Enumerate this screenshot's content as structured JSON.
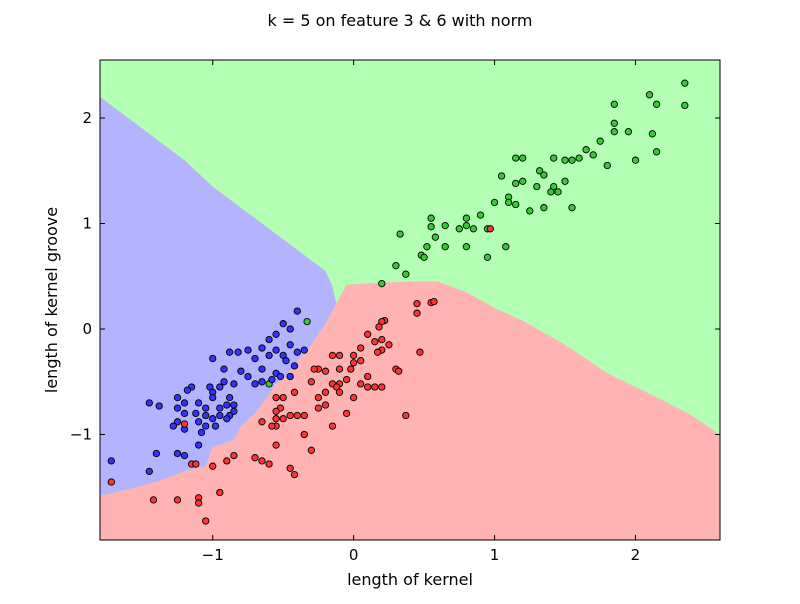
{
  "chart_data": {
    "type": "scatter",
    "title": "k = 5 on feature 3 & 6 with norm",
    "xlabel": "length of kernel",
    "ylabel": "length of kernel groove",
    "xlim": [
      -1.8,
      2.6
    ],
    "ylim": [
      -2.0,
      2.55
    ],
    "grid": false,
    "legend": "none",
    "xticks": [
      {
        "value": -1,
        "label": "−1"
      },
      {
        "value": 0,
        "label": "0"
      },
      {
        "value": 1,
        "label": "1"
      },
      {
        "value": 2,
        "label": "2"
      }
    ],
    "yticks": [
      {
        "value": -1,
        "label": "−1"
      },
      {
        "value": 0,
        "label": "0"
      },
      {
        "value": 1,
        "label": "1"
      },
      {
        "value": 2,
        "label": "2"
      }
    ],
    "regions": [
      {
        "class": "green",
        "color": "#b3ffb3",
        "points": [
          [
            -1.8,
            2.2
          ],
          [
            -1.7,
            2.1
          ],
          [
            -1.5,
            1.9
          ],
          [
            -1.2,
            1.6
          ],
          [
            -1.0,
            1.35
          ],
          [
            -0.8,
            1.15
          ],
          [
            -0.6,
            0.95
          ],
          [
            -0.4,
            0.75
          ],
          [
            -0.2,
            0.55
          ],
          [
            0.0,
            0.42
          ],
          [
            0.2,
            0.44
          ],
          [
            0.4,
            0.62
          ],
          [
            0.6,
            0.75
          ],
          [
            0.8,
            0.78
          ],
          [
            1.0,
            0.82
          ],
          [
            1.2,
            0.72
          ],
          [
            1.5,
            0.55
          ],
          [
            1.8,
            0.35
          ],
          [
            2.0,
            0.22
          ],
          [
            2.2,
            0.05
          ],
          [
            2.4,
            -0.2
          ],
          [
            2.6,
            -0.4
          ],
          [
            2.6,
            2.55
          ],
          [
            -1.8,
            2.55
          ]
        ]
      },
      {
        "class": "blue",
        "color": "#b3b3ff",
        "points": [
          [
            -1.8,
            2.2
          ],
          [
            -1.7,
            2.1
          ],
          [
            -1.5,
            1.9
          ],
          [
            -1.2,
            1.6
          ],
          [
            -1.0,
            1.35
          ],
          [
            -0.8,
            1.15
          ],
          [
            -0.6,
            0.95
          ],
          [
            -0.4,
            0.75
          ],
          [
            -0.2,
            0.55
          ],
          [
            -0.15,
            0.4
          ],
          [
            -0.12,
            0.22
          ],
          [
            -0.2,
            0.05
          ],
          [
            -0.3,
            -0.15
          ],
          [
            -0.4,
            -0.3
          ],
          [
            -0.48,
            -0.45
          ],
          [
            -0.55,
            -0.52
          ],
          [
            -0.6,
            -0.62
          ],
          [
            -0.7,
            -0.8
          ],
          [
            -0.8,
            -0.92
          ],
          [
            -0.85,
            -1.05
          ],
          [
            -1.0,
            -1.12
          ],
          [
            -1.05,
            -1.3
          ],
          [
            -1.2,
            -1.35
          ],
          [
            -1.4,
            -1.45
          ],
          [
            -1.6,
            -1.52
          ],
          [
            -1.8,
            -1.58
          ]
        ]
      },
      {
        "class": "red",
        "color": "#ffb3b3",
        "points": [
          [
            -1.8,
            -1.58
          ],
          [
            -1.6,
            -1.52
          ],
          [
            -1.4,
            -1.45
          ],
          [
            -1.2,
            -1.35
          ],
          [
            -1.05,
            -1.3
          ],
          [
            -1.0,
            -1.12
          ],
          [
            -0.85,
            -1.05
          ],
          [
            -0.8,
            -0.92
          ],
          [
            -0.7,
            -0.8
          ],
          [
            -0.6,
            -0.62
          ],
          [
            -0.55,
            -0.52
          ],
          [
            -0.48,
            -0.45
          ],
          [
            -0.4,
            -0.3
          ],
          [
            -0.3,
            -0.15
          ],
          [
            -0.2,
            0.05
          ],
          [
            -0.1,
            0.3
          ],
          [
            -0.05,
            0.42
          ],
          [
            0.2,
            0.44
          ],
          [
            0.4,
            0.45
          ],
          [
            0.6,
            0.45
          ],
          [
            0.8,
            0.35
          ],
          [
            1.0,
            0.2
          ],
          [
            1.2,
            0.08
          ],
          [
            1.5,
            -0.15
          ],
          [
            1.8,
            -0.42
          ],
          [
            2.0,
            -0.55
          ],
          [
            2.2,
            -0.68
          ],
          [
            2.4,
            -0.82
          ],
          [
            2.6,
            -1.0
          ],
          [
            2.6,
            -2.0
          ],
          [
            -1.8,
            -2.0
          ]
        ]
      }
    ],
    "series": [
      {
        "class": "green",
        "color": "#33cc33",
        "points": [
          [
            1.85,
            2.13
          ],
          [
            2.1,
            2.22
          ],
          [
            2.35,
            2.33
          ],
          [
            2.15,
            2.13
          ],
          [
            2.35,
            2.12
          ],
          [
            1.85,
            1.95
          ],
          [
            1.95,
            1.87
          ],
          [
            2.12,
            1.85
          ],
          [
            1.85,
            1.87
          ],
          [
            1.75,
            1.78
          ],
          [
            1.65,
            1.7
          ],
          [
            1.7,
            1.65
          ],
          [
            1.55,
            1.6
          ],
          [
            1.42,
            1.62
          ],
          [
            1.6,
            1.62
          ],
          [
            1.5,
            1.6
          ],
          [
            2.15,
            1.68
          ],
          [
            2.0,
            1.6
          ],
          [
            1.8,
            1.55
          ],
          [
            1.2,
            1.62
          ],
          [
            1.15,
            1.62
          ],
          [
            1.32,
            1.5
          ],
          [
            1.35,
            1.46
          ],
          [
            1.5,
            1.4
          ],
          [
            1.42,
            1.35
          ],
          [
            1.45,
            1.3
          ],
          [
            1.4,
            1.3
          ],
          [
            1.3,
            1.35
          ],
          [
            1.2,
            1.4
          ],
          [
            1.15,
            1.38
          ],
          [
            1.05,
            1.45
          ],
          [
            1.1,
            1.25
          ],
          [
            1.15,
            1.18
          ],
          [
            1.0,
            1.2
          ],
          [
            1.1,
            1.2
          ],
          [
            1.25,
            1.12
          ],
          [
            1.35,
            1.15
          ],
          [
            1.55,
            1.15
          ],
          [
            0.55,
            1.05
          ],
          [
            0.8,
            1.05
          ],
          [
            0.9,
            1.08
          ],
          [
            0.65,
            0.98
          ],
          [
            0.55,
            0.97
          ],
          [
            0.75,
            0.95
          ],
          [
            0.8,
            0.98
          ],
          [
            0.85,
            0.95
          ],
          [
            0.95,
            0.95
          ],
          [
            0.33,
            0.9
          ],
          [
            0.58,
            0.87
          ],
          [
            0.52,
            0.78
          ],
          [
            0.65,
            0.78
          ],
          [
            0.8,
            0.78
          ],
          [
            1.08,
            0.78
          ],
          [
            0.48,
            0.7
          ],
          [
            0.5,
            0.68
          ],
          [
            0.95,
            0.68
          ],
          [
            0.3,
            0.6
          ],
          [
            0.37,
            0.52
          ],
          [
            0.2,
            0.43
          ],
          [
            -0.33,
            0.07
          ],
          [
            -0.6,
            -0.52
          ]
        ]
      },
      {
        "class": "blue",
        "color": "#3333ff",
        "points": [
          [
            -0.4,
            0.17
          ],
          [
            -0.5,
            0.05
          ],
          [
            -0.45,
            0.0
          ],
          [
            -0.55,
            -0.05
          ],
          [
            -0.6,
            -0.1
          ],
          [
            -0.45,
            -0.15
          ],
          [
            -0.75,
            -0.2
          ],
          [
            -0.82,
            -0.22
          ],
          [
            -0.88,
            -0.22
          ],
          [
            -0.65,
            -0.18
          ],
          [
            -0.55,
            -0.2
          ],
          [
            -0.5,
            -0.25
          ],
          [
            -0.4,
            -0.22
          ],
          [
            -0.35,
            -0.2
          ],
          [
            -1.0,
            -0.28
          ],
          [
            -0.7,
            -0.28
          ],
          [
            -0.6,
            -0.25
          ],
          [
            -0.48,
            -0.3
          ],
          [
            -0.42,
            -0.35
          ],
          [
            -0.92,
            -0.38
          ],
          [
            -0.8,
            -0.4
          ],
          [
            -0.75,
            -0.45
          ],
          [
            -0.65,
            -0.38
          ],
          [
            -0.55,
            -0.42
          ],
          [
            -0.52,
            -0.45
          ],
          [
            -0.58,
            -0.48
          ],
          [
            -0.45,
            -0.45
          ],
          [
            -0.92,
            -0.5
          ],
          [
            -0.85,
            -0.52
          ],
          [
            -0.7,
            -0.52
          ],
          [
            -0.65,
            -0.5
          ],
          [
            -1.15,
            -0.55
          ],
          [
            -1.18,
            -0.58
          ],
          [
            -1.02,
            -0.55
          ],
          [
            -0.95,
            -0.55
          ],
          [
            -1.0,
            -0.6
          ],
          [
            -1.45,
            -0.7
          ],
          [
            -1.25,
            -0.65
          ],
          [
            -1.2,
            -0.7
          ],
          [
            -1.1,
            -0.7
          ],
          [
            -1.0,
            -0.65
          ],
          [
            -0.88,
            -0.65
          ],
          [
            -0.85,
            -0.72
          ],
          [
            -1.38,
            -0.73
          ],
          [
            -1.25,
            -0.75
          ],
          [
            -1.05,
            -0.75
          ],
          [
            -0.95,
            -0.75
          ],
          [
            -0.9,
            -0.72
          ],
          [
            -0.85,
            -0.78
          ],
          [
            -0.88,
            -0.82
          ],
          [
            -1.2,
            -0.8
          ],
          [
            -1.12,
            -0.8
          ],
          [
            -1.05,
            -0.82
          ],
          [
            -1.0,
            -0.85
          ],
          [
            -0.95,
            -0.82
          ],
          [
            -0.9,
            -0.85
          ],
          [
            -1.25,
            -0.88
          ],
          [
            -1.1,
            -0.88
          ],
          [
            -1.05,
            -0.92
          ],
          [
            -0.98,
            -0.92
          ],
          [
            -1.28,
            -0.92
          ],
          [
            -1.2,
            -0.95
          ],
          [
            -1.08,
            -0.98
          ],
          [
            -1.1,
            -1.1
          ],
          [
            -1.4,
            -1.18
          ],
          [
            -1.25,
            -1.18
          ],
          [
            -1.2,
            -1.2
          ],
          [
            -1.72,
            -1.25
          ],
          [
            -1.45,
            -1.35
          ]
        ]
      },
      {
        "class": "red",
        "color": "#ff3333",
        "points": [
          [
            0.55,
            0.25
          ],
          [
            0.57,
            0.26
          ],
          [
            0.45,
            0.24
          ],
          [
            0.45,
            0.15
          ],
          [
            0.22,
            0.08
          ],
          [
            0.2,
            0.07
          ],
          [
            0.18,
            0.02
          ],
          [
            0.1,
            -0.05
          ],
          [
            0.2,
            -0.1
          ],
          [
            0.15,
            -0.12
          ],
          [
            0.25,
            -0.15
          ],
          [
            0.05,
            -0.18
          ],
          [
            0.2,
            -0.2
          ],
          [
            0.0,
            -0.25
          ],
          [
            0.17,
            -0.22
          ],
          [
            0.47,
            -0.22
          ],
          [
            -0.1,
            -0.25
          ],
          [
            -0.15,
            -0.25
          ],
          [
            0.05,
            -0.3
          ],
          [
            0.0,
            -0.32
          ],
          [
            -0.02,
            -0.38
          ],
          [
            -0.1,
            -0.38
          ],
          [
            -0.25,
            -0.38
          ],
          [
            -0.2,
            -0.4
          ],
          [
            -0.28,
            -0.38
          ],
          [
            0.3,
            -0.38
          ],
          [
            0.32,
            -0.4
          ],
          [
            0.1,
            -0.45
          ],
          [
            -0.05,
            -0.48
          ],
          [
            -0.1,
            -0.52
          ],
          [
            -0.15,
            -0.52
          ],
          [
            0.05,
            -0.52
          ],
          [
            0.1,
            -0.55
          ],
          [
            0.15,
            -0.55
          ],
          [
            -0.12,
            -0.55
          ],
          [
            -0.3,
            -0.5
          ],
          [
            0.2,
            -0.55
          ],
          [
            -0.1,
            -0.6
          ],
          [
            -0.2,
            -0.6
          ],
          [
            0.0,
            -0.65
          ],
          [
            -0.25,
            -0.65
          ],
          [
            -0.42,
            -0.6
          ],
          [
            -0.5,
            -0.65
          ],
          [
            -0.55,
            -0.65
          ],
          [
            -0.2,
            -0.72
          ],
          [
            -0.25,
            -0.75
          ],
          [
            -0.52,
            -0.75
          ],
          [
            -0.55,
            -0.78
          ],
          [
            -0.05,
            -0.8
          ],
          [
            -0.45,
            -0.82
          ],
          [
            -0.5,
            -0.85
          ],
          [
            -0.55,
            -0.85
          ],
          [
            -0.4,
            -0.82
          ],
          [
            -0.35,
            -0.82
          ],
          [
            0.37,
            -0.82
          ],
          [
            -0.15,
            -0.92
          ],
          [
            -0.55,
            -0.92
          ],
          [
            -0.58,
            -0.92
          ],
          [
            -0.65,
            -0.88
          ],
          [
            -1.2,
            -0.9
          ],
          [
            -0.35,
            -1.0
          ],
          [
            -0.55,
            -1.1
          ],
          [
            -0.3,
            -1.15
          ],
          [
            -0.85,
            -1.2
          ],
          [
            -0.7,
            -1.22
          ],
          [
            -0.65,
            -1.25
          ],
          [
            -0.6,
            -1.28
          ],
          [
            -0.9,
            -1.25
          ],
          [
            -1.15,
            -1.28
          ],
          [
            -1.12,
            -1.28
          ],
          [
            -1.0,
            -1.3
          ],
          [
            -0.45,
            -1.32
          ],
          [
            -0.42,
            -1.38
          ],
          [
            -1.72,
            -1.45
          ],
          [
            -0.95,
            -1.55
          ],
          [
            -1.1,
            -1.6
          ],
          [
            -1.42,
            -1.62
          ],
          [
            -1.25,
            -1.62
          ],
          [
            -1.1,
            -1.65
          ],
          [
            -1.05,
            -1.82
          ],
          [
            0.97,
            0.95
          ]
        ]
      }
    ]
  }
}
